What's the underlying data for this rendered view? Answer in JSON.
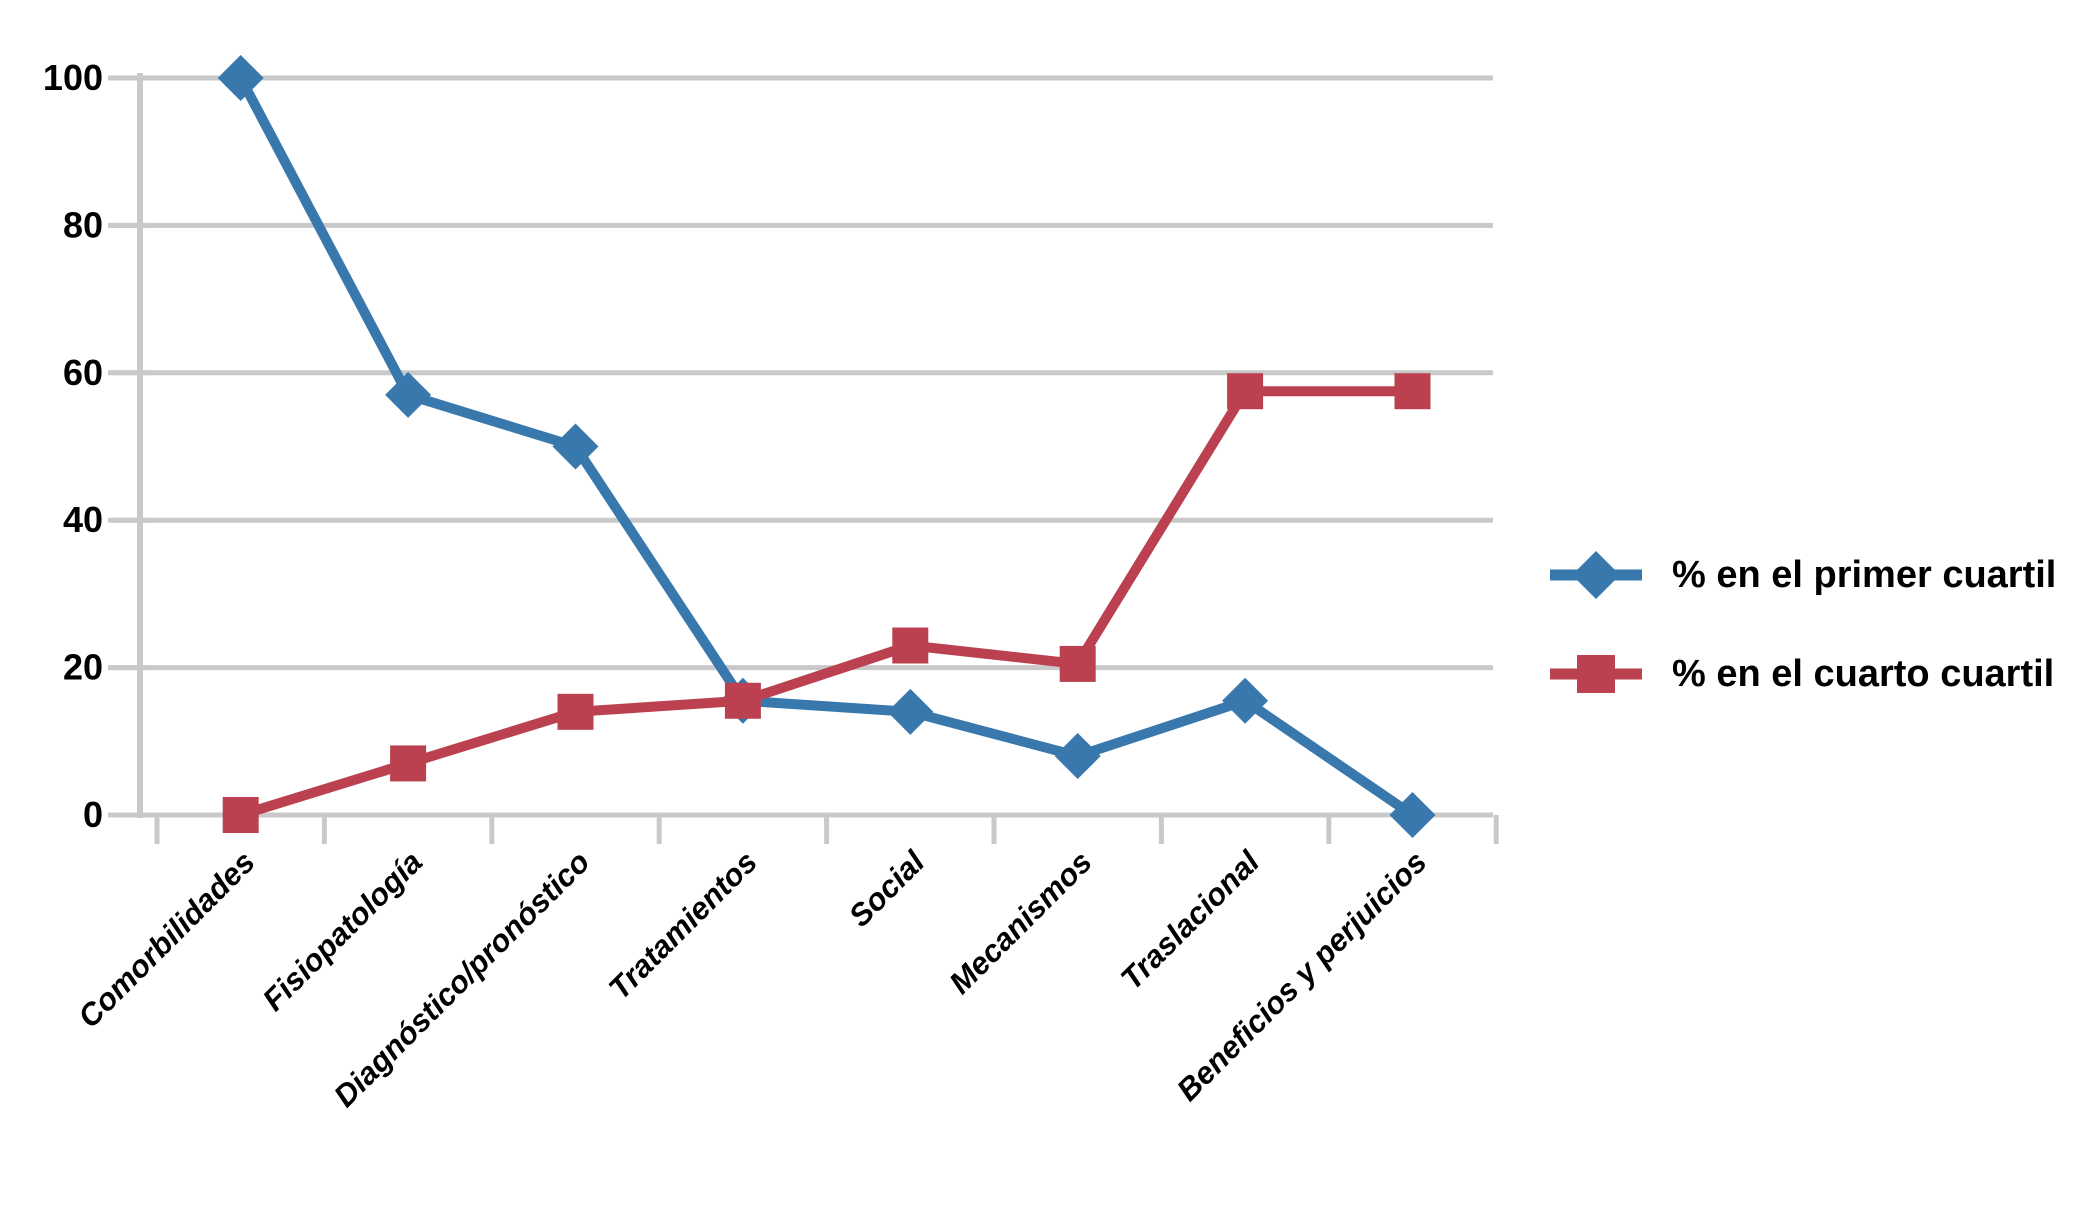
{
  "chart_data": {
    "type": "line",
    "categories": [
      "Comorbilidades",
      "Fisiopatología",
      "Diagnóstico/pronóstico",
      "Tratamientos",
      "Social",
      "Mecanismos",
      "Traslacional",
      "Beneficios y perjuicios"
    ],
    "series": [
      {
        "name": "% en el primer cuartil",
        "marker": "diamond",
        "color": "#3878AC",
        "values": [
          100,
          57,
          50,
          15.5,
          14,
          8,
          15.5,
          0
        ]
      },
      {
        "name": "% en el cuarto cuartil",
        "marker": "square",
        "color": "#BC4150",
        "values": [
          0,
          7,
          14,
          15.5,
          23,
          20.5,
          57.5,
          57.5
        ]
      }
    ],
    "ylim": [
      0,
      100
    ],
    "yticks": [
      0,
      20,
      40,
      60,
      80,
      100
    ],
    "ytick_labels": [
      "0",
      "20",
      "40",
      "60",
      "80",
      "100"
    ],
    "grid": "horizontal-major",
    "gridline_color": "#C9C9C9",
    "text_color": "#000000",
    "background": "#FFFFFF",
    "legend_position": "right-middle"
  }
}
